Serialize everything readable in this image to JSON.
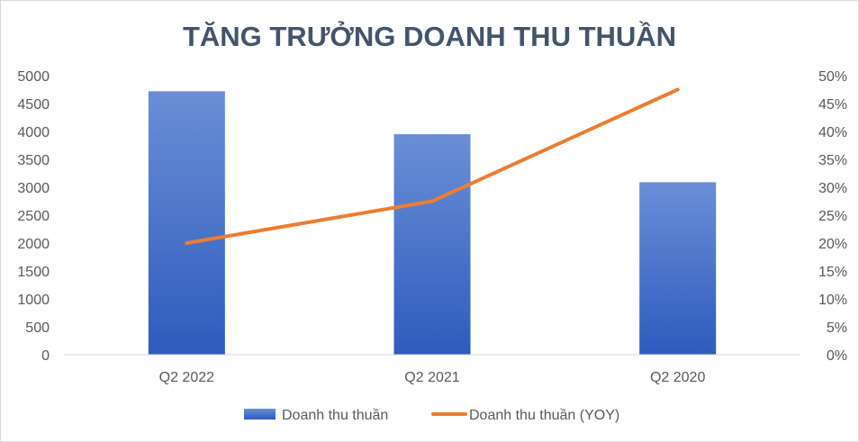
{
  "chart_data": {
    "type": "bar",
    "title": "TĂNG TRƯỞNG DOANH THU THUẦN",
    "categories": [
      "Q2 2022",
      "Q2 2021",
      "Q2 2020"
    ],
    "series": [
      {
        "name": "Doanh thu thuần",
        "type": "bar",
        "axis": "left",
        "color": "#4472c4",
        "values": [
          4720,
          3950,
          3090
        ]
      },
      {
        "name": "Doanh thu thuần (YOY)",
        "type": "line",
        "axis": "right",
        "color": "#ed7d31",
        "values": [
          0.2,
          0.275,
          0.475
        ]
      }
    ],
    "y_left": {
      "min": 0,
      "max": 5000,
      "step": 500,
      "tick_labels": [
        "0",
        "500",
        "1000",
        "1500",
        "2000",
        "2500",
        "3000",
        "3500",
        "4000",
        "4500",
        "5000"
      ]
    },
    "y_right": {
      "min": 0,
      "max": 0.5,
      "step": 0.05,
      "tick_labels": [
        "0%",
        "5%",
        "10%",
        "15%",
        "20%",
        "25%",
        "30%",
        "35%",
        "40%",
        "45%",
        "50%"
      ]
    },
    "grid": false,
    "legend_position": "bottom"
  }
}
